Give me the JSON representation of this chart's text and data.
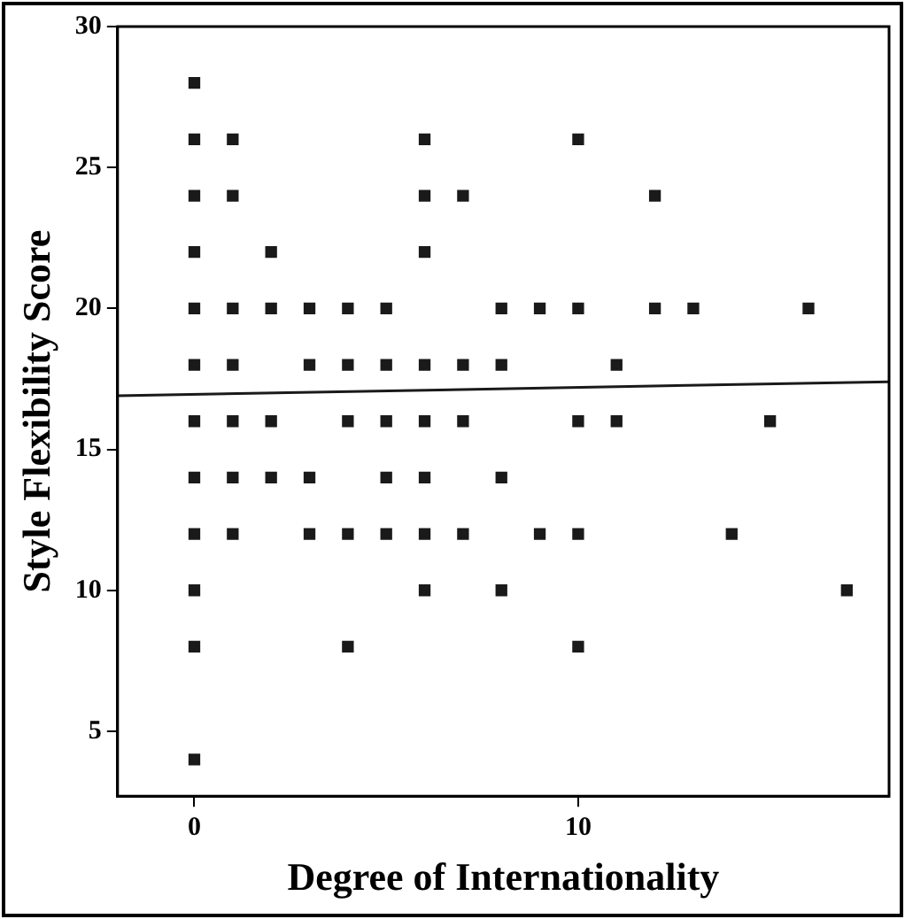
{
  "chart_data": {
    "type": "scatter",
    "xlabel": "Degree of Internationality",
    "ylabel": "Style Flexibility Score",
    "xlim": [
      -2,
      18.1
    ],
    "ylim": [
      2.7,
      30
    ],
    "xticks": [
      0,
      10
    ],
    "yticks": [
      5,
      10,
      15,
      20,
      25,
      30
    ],
    "grid": false,
    "legend": false,
    "marker": "square",
    "series": [
      {
        "color": "#1a1a1a",
        "x": [
          0,
          0,
          1,
          6,
          10,
          0,
          1,
          6,
          7,
          12,
          0,
          2,
          6,
          0,
          1,
          2,
          3,
          4,
          5,
          8,
          9,
          10,
          12,
          13,
          16,
          0,
          1,
          3,
          4,
          5,
          6,
          7,
          8,
          11,
          0,
          1,
          2,
          4,
          5,
          6,
          7,
          10,
          11,
          15,
          0,
          1,
          2,
          3,
          5,
          6,
          8,
          0,
          1,
          3,
          4,
          5,
          6,
          7,
          9,
          10,
          14,
          0,
          6,
          8,
          17,
          0,
          4,
          10,
          0
        ],
        "values": [
          28,
          26,
          26,
          26,
          26,
          24,
          24,
          24,
          24,
          24,
          22,
          22,
          22,
          20,
          20,
          20,
          20,
          20,
          20,
          20,
          20,
          20,
          20,
          20,
          20,
          18,
          18,
          18,
          18,
          18,
          18,
          18,
          18,
          18,
          16,
          16,
          16,
          16,
          16,
          16,
          16,
          16,
          16,
          16,
          14,
          14,
          14,
          14,
          14,
          14,
          14,
          12,
          12,
          12,
          12,
          12,
          12,
          12,
          12,
          12,
          12,
          10,
          10,
          10,
          10,
          8,
          8,
          8,
          4
        ]
      },
      {
        "type": "line",
        "color": "#1a1a1a",
        "marker": "none",
        "x": [
          -2,
          18.1
        ],
        "values": [
          16.9,
          17.4
        ]
      }
    ]
  }
}
